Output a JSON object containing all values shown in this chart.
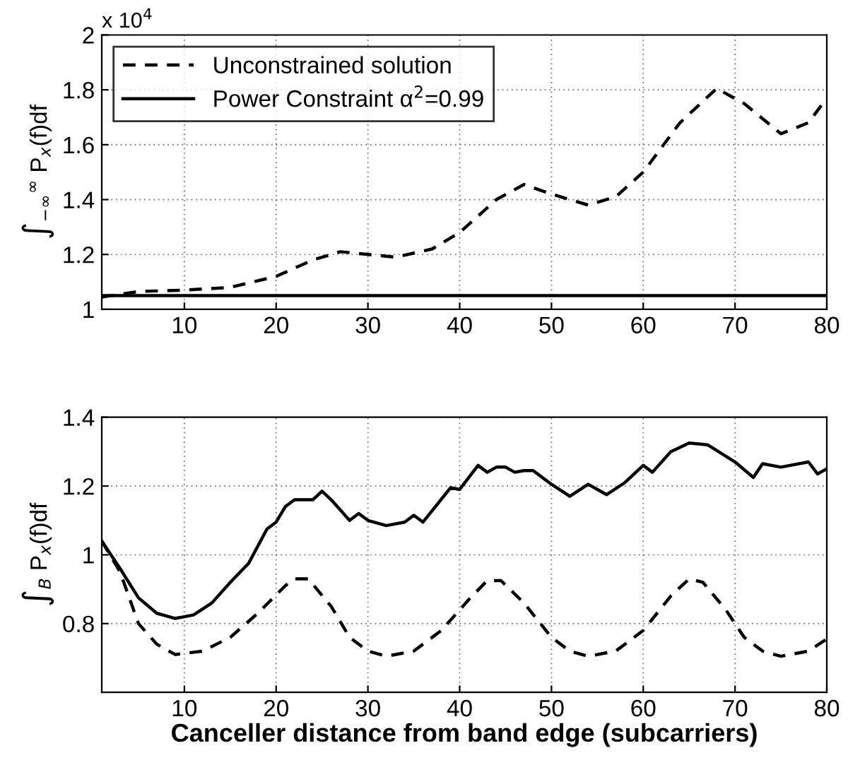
{
  "chart_data": [
    {
      "type": "line",
      "ylabel": "∫$_{−∞}$$^{∞}$ P$_{x}$(f)df",
      "annotations": [
        "x 10$^{4}$"
      ],
      "xlim": [
        1,
        80
      ],
      "xticks": [
        10,
        20,
        30,
        40,
        50,
        60,
        70,
        80
      ],
      "ylim": [
        1,
        2
      ],
      "yticks": [
        1,
        1.2,
        1.4,
        1.6,
        1.8,
        2
      ],
      "grid": true,
      "legend": "top left",
      "series": [
        {
          "name": "Unconstrained solution",
          "color": "#000000",
          "line_style": "dashed",
          "x": [
            1,
            5,
            10,
            15,
            20,
            24,
            27,
            30,
            33,
            37,
            40,
            44,
            47,
            50,
            54,
            57,
            60,
            64,
            68,
            71,
            75,
            78,
            80
          ],
          "values": [
            1.045,
            1.065,
            1.07,
            1.08,
            1.12,
            1.18,
            1.21,
            1.2,
            1.19,
            1.22,
            1.28,
            1.4,
            1.455,
            1.42,
            1.38,
            1.41,
            1.5,
            1.68,
            1.805,
            1.75,
            1.64,
            1.68,
            1.77
          ]
        },
        {
          "name": "Power Constraint α$^{2}$=0.99",
          "color": "#000000",
          "line_style": "solid",
          "x": [
            1,
            80
          ],
          "values": [
            1.05,
            1.05
          ]
        }
      ]
    },
    {
      "type": "line",
      "ylabel": "∫$_{B}$ P$_{x}$(f)df",
      "xlabel": "Canceller distance from band edge (subcarriers)",
      "xlim": [
        1,
        80
      ],
      "xticks": [
        10,
        20,
        30,
        40,
        50,
        60,
        70,
        80
      ],
      "ylim": [
        0.6,
        1.4
      ],
      "yticks": [
        0.8,
        1,
        1.2,
        1.4
      ],
      "grid": true,
      "series": [
        {
          "color": "#000000",
          "line_style": "dashed",
          "x": [
            1,
            3,
            5,
            7,
            9,
            12,
            15,
            18,
            21,
            22,
            23.5,
            26,
            28,
            30,
            32,
            35,
            38,
            41,
            43,
            44.5,
            47,
            50,
            52,
            54,
            57,
            60,
            63,
            65,
            66.5,
            69,
            71,
            73,
            75,
            78,
            80
          ],
          "values": [
            1.04,
            0.95,
            0.8,
            0.74,
            0.71,
            0.72,
            0.76,
            0.83,
            0.91,
            0.93,
            0.93,
            0.85,
            0.76,
            0.72,
            0.705,
            0.72,
            0.78,
            0.87,
            0.925,
            0.925,
            0.86,
            0.76,
            0.72,
            0.705,
            0.72,
            0.78,
            0.88,
            0.93,
            0.92,
            0.84,
            0.76,
            0.72,
            0.705,
            0.72,
            0.755
          ]
        },
        {
          "color": "#000000",
          "line_style": "solid",
          "x": [
            1,
            3,
            5,
            7,
            9,
            11,
            13,
            15,
            17,
            19,
            20,
            21,
            22,
            24,
            25,
            26,
            28,
            29,
            30,
            32,
            34,
            35,
            36,
            39,
            40,
            42,
            43,
            44,
            45,
            46,
            47,
            48,
            50,
            52,
            54,
            56,
            58,
            60,
            61,
            63,
            65,
            67,
            70,
            72,
            73,
            75,
            78,
            79,
            80
          ],
          "values": [
            1.04,
            0.96,
            0.875,
            0.83,
            0.815,
            0.825,
            0.86,
            0.92,
            0.975,
            1.075,
            1.095,
            1.14,
            1.16,
            1.16,
            1.185,
            1.16,
            1.1,
            1.12,
            1.1,
            1.085,
            1.095,
            1.115,
            1.095,
            1.195,
            1.19,
            1.26,
            1.24,
            1.255,
            1.255,
            1.24,
            1.245,
            1.245,
            1.205,
            1.17,
            1.205,
            1.175,
            1.21,
            1.26,
            1.24,
            1.3,
            1.325,
            1.32,
            1.27,
            1.225,
            1.265,
            1.255,
            1.27,
            1.235,
            1.25
          ]
        }
      ]
    }
  ]
}
